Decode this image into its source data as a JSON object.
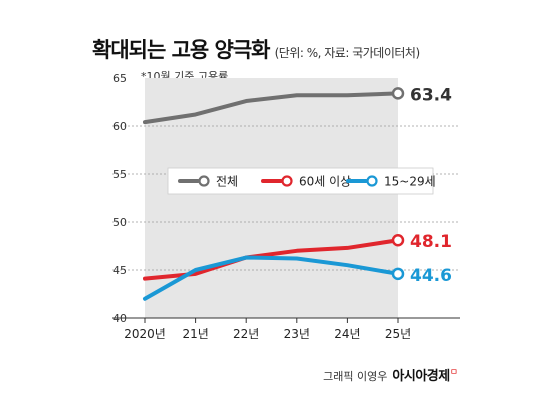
{
  "title": "확대되는 고용 양극화",
  "subtitle": "(단위: %, 자료: 국가데이터처)",
  "note": "*10월 기준 고용률",
  "credit": "그래픽 이영우",
  "brand": "아시아경제",
  "brand_mark": "ㅁ",
  "chart_data": {
    "type": "line",
    "categories": [
      "2020년",
      "21년",
      "22년",
      "23년",
      "24년",
      "25년"
    ],
    "ylim": [
      40,
      65
    ],
    "yticks": [
      40,
      45,
      50,
      55,
      60,
      65
    ],
    "grid": true,
    "legend_position": "center",
    "series": [
      {
        "name": "전체",
        "color": "#707070",
        "values": [
          60.4,
          61.2,
          62.6,
          63.2,
          63.2,
          63.4
        ],
        "end_label": "63.4",
        "end_label_color": "#333333"
      },
      {
        "name": "60세 이상",
        "color": "#e0262d",
        "values": [
          44.1,
          44.6,
          46.3,
          47.0,
          47.3,
          48.1
        ],
        "end_label": "48.1",
        "end_label_color": "#e0262d"
      },
      {
        "name": "15~29세",
        "color": "#1a98d5",
        "values": [
          42.0,
          45.0,
          46.3,
          46.2,
          45.5,
          44.6
        ],
        "end_label": "44.6",
        "end_label_color": "#1a98d5"
      }
    ]
  }
}
